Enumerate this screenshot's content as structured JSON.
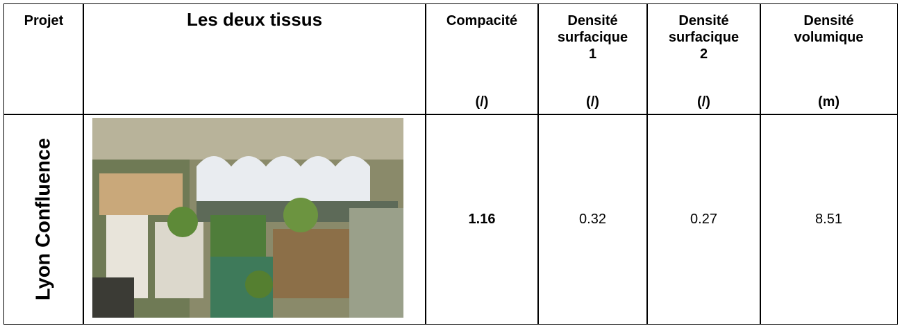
{
  "table": {
    "headers": [
      {
        "lines": [
          "Projet"
        ]
      },
      {
        "lines": [
          "Les deux tissus"
        ]
      },
      {
        "lines": [
          "Compacité"
        ],
        "unit": "(/)"
      },
      {
        "lines": [
          "Densité",
          "surfacique",
          "1"
        ],
        "unit": "(/)"
      },
      {
        "lines": [
          "Densité",
          "surfacique",
          "2"
        ],
        "unit": "(/)"
      },
      {
        "lines": [
          "Densité",
          "volumique"
        ],
        "unit": "(m)"
      }
    ],
    "rows": [
      {
        "project": "Lyon Confluence",
        "values": [
          "1.16",
          "0.32",
          "0.27",
          "8.51"
        ]
      }
    ]
  }
}
